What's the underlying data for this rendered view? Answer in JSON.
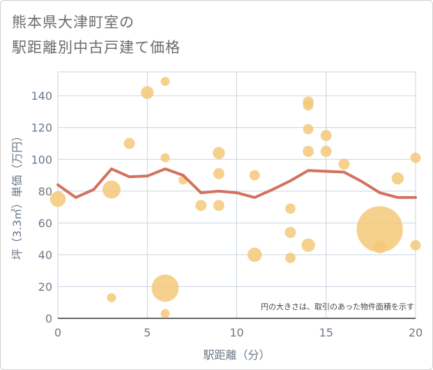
{
  "page": {
    "title_line1": "熊本県大津町室の",
    "title_line2": "駅距離別中古戸建て価格"
  },
  "chart_data": {
    "type": "scatter",
    "title": "熊本県大津町室の駅距離別中古戸建て価格",
    "xlabel": "駅距離（分）",
    "ylabel": "坪（3.3㎡）単価（万円）",
    "xlim": [
      0,
      20
    ],
    "ylim": [
      0,
      155
    ],
    "xticks": [
      0,
      5,
      10,
      15,
      20
    ],
    "yticks": [
      0,
      20,
      40,
      60,
      80,
      100,
      120,
      140
    ],
    "grid": true,
    "note": "円の大きさは、取引のあった物件面積を示す",
    "colors": {
      "bubble": "#f5c97a",
      "line": "#d06a55",
      "grid": "#c9d4e0"
    },
    "points": [
      {
        "x": 0,
        "y": 75,
        "size": 3
      },
      {
        "x": 3,
        "y": 81,
        "size": 4
      },
      {
        "x": 3,
        "y": 13,
        "size": 1
      },
      {
        "x": 4,
        "y": 110,
        "size": 1.5
      },
      {
        "x": 5,
        "y": 142,
        "size": 2
      },
      {
        "x": 6,
        "y": 149,
        "size": 1
      },
      {
        "x": 6,
        "y": 101,
        "size": 1
      },
      {
        "x": 6,
        "y": 19,
        "size": 9
      },
      {
        "x": 6,
        "y": 3,
        "size": 1
      },
      {
        "x": 7,
        "y": 87,
        "size": 1
      },
      {
        "x": 8,
        "y": 71,
        "size": 1.5
      },
      {
        "x": 9,
        "y": 104,
        "size": 1.8
      },
      {
        "x": 9,
        "y": 91,
        "size": 1.5
      },
      {
        "x": 9,
        "y": 71,
        "size": 1.5
      },
      {
        "x": 11,
        "y": 90,
        "size": 1.3
      },
      {
        "x": 11,
        "y": 40,
        "size": 2.5
      },
      {
        "x": 13,
        "y": 69,
        "size": 1.3
      },
      {
        "x": 13,
        "y": 54,
        "size": 1.5
      },
      {
        "x": 13,
        "y": 38,
        "size": 1.3
      },
      {
        "x": 14,
        "y": 136,
        "size": 1.5
      },
      {
        "x": 14,
        "y": 134,
        "size": 1.3
      },
      {
        "x": 14,
        "y": 119,
        "size": 1.3
      },
      {
        "x": 14,
        "y": 105,
        "size": 1.5
      },
      {
        "x": 14,
        "y": 46,
        "size": 2.2
      },
      {
        "x": 15,
        "y": 115,
        "size": 1.5
      },
      {
        "x": 15,
        "y": 105,
        "size": 1.5
      },
      {
        "x": 16,
        "y": 97,
        "size": 1.5
      },
      {
        "x": 18,
        "y": 56,
        "size": 26
      },
      {
        "x": 18,
        "y": 45,
        "size": 2
      },
      {
        "x": 19,
        "y": 88,
        "size": 1.8
      },
      {
        "x": 20,
        "y": 101,
        "size": 1.3
      },
      {
        "x": 20,
        "y": 46,
        "size": 1.3
      }
    ],
    "trend_line": {
      "x": [
        0,
        1,
        2,
        3,
        4,
        5,
        6,
        7,
        8,
        9,
        10,
        11,
        12,
        13,
        14,
        15,
        16,
        17,
        18,
        19,
        20
      ],
      "y": [
        84,
        76,
        81,
        94,
        89,
        89.5,
        94,
        90,
        79,
        80,
        79,
        76,
        81,
        86.5,
        93,
        92.5,
        92,
        86,
        79,
        76,
        76
      ]
    }
  }
}
